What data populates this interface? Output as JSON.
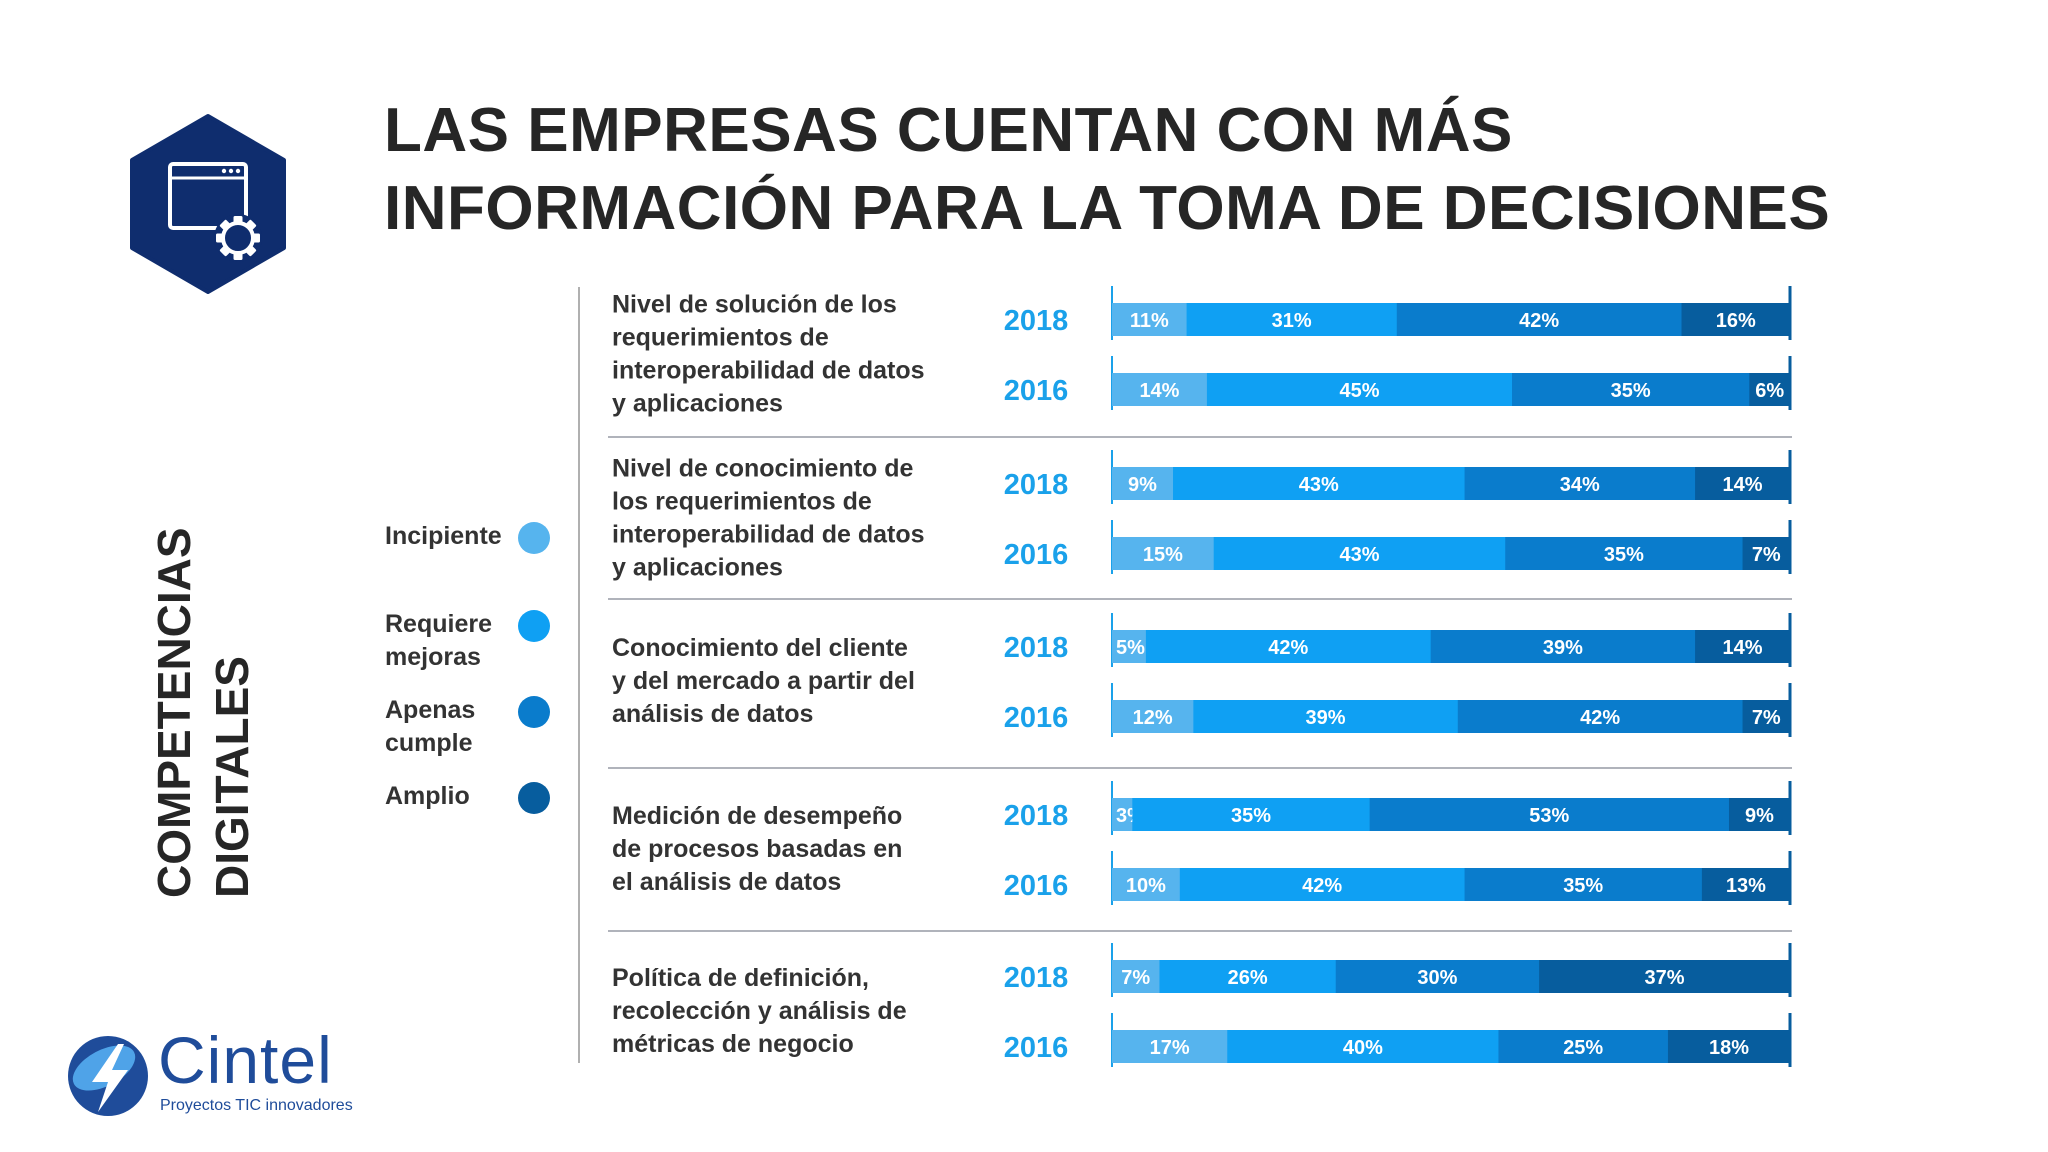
{
  "title": {
    "line1": "LAS EMPRESAS CUENTAN CON MÁS",
    "line2": "INFORMACIÓN PARA LA TOMA DE DECISIONES"
  },
  "side_label": {
    "line1": "COMPETENCIAS",
    "line2": "DIGITALES"
  },
  "logo": {
    "name": "Cintel",
    "tagline": "Proyectos TIC innovadores"
  },
  "colors": {
    "incipiente": "#56b4ee",
    "requiere_mejoras": "#0fa0f3",
    "apenas_cumple": "#0a7ccc",
    "amplio": "#075d9e",
    "hex": "#0f2d6e",
    "year": "#1aa1ea"
  },
  "chart_data": {
    "type": "bar",
    "orientation": "horizontal",
    "stacked": true,
    "legend": [
      {
        "name": "Incipiente",
        "color": "#56b4ee"
      },
      {
        "name": "Requiere mejoras",
        "color": "#0fa0f3"
      },
      {
        "name": "Apenas cumple",
        "color": "#0a7ccc"
      },
      {
        "name": "Amplio",
        "color": "#075d9e"
      }
    ],
    "legend_placement": "left",
    "xlim": [
      0,
      100
    ],
    "groups": [
      {
        "category": "Nivel de solución de los requerimientos de interoperabilidad de datos y aplicaciones",
        "category_lines": [
          "Nivel de solución de los",
          "requerimientos de",
          "interoperabilidad de datos",
          "y aplicaciones"
        ],
        "rows": [
          {
            "year": "2018",
            "values": [
              11,
              31,
              42,
              16
            ]
          },
          {
            "year": "2016",
            "values": [
              14,
              45,
              35,
              6
            ]
          }
        ]
      },
      {
        "category": "Nivel de conocimiento de los requerimientos de interoperabilidad de datos y aplicaciones",
        "category_lines": [
          "Nivel de conocimiento de",
          "los requerimientos de",
          "interoperabilidad de datos",
          "y aplicaciones"
        ],
        "rows": [
          {
            "year": "2018",
            "values": [
              9,
              43,
              34,
              14
            ]
          },
          {
            "year": "2016",
            "values": [
              15,
              43,
              35,
              7
            ]
          }
        ]
      },
      {
        "category": "Conocimiento del cliente y del mercado a partir del análisis de datos",
        "category_lines": [
          "Conocimiento del cliente",
          "y del mercado a partir del",
          "análisis de datos"
        ],
        "rows": [
          {
            "year": "2018",
            "values": [
              5,
              42,
              39,
              14
            ]
          },
          {
            "year": "2016",
            "values": [
              12,
              39,
              42,
              7
            ]
          }
        ]
      },
      {
        "category": "Medición de desempeño de procesos basadas en el análisis de datos",
        "category_lines": [
          "Medición de desempeño",
          "de procesos basadas en",
          "el análisis de datos"
        ],
        "rows": [
          {
            "year": "2018",
            "values": [
              3,
              35,
              53,
              9
            ]
          },
          {
            "year": "2016",
            "values": [
              10,
              42,
              35,
              13
            ]
          }
        ]
      },
      {
        "category": "Política de definición, recolección y análisis de métricas de negocio",
        "category_lines": [
          "Política de definición,",
          "recolección y análisis de",
          "métricas de negocio"
        ],
        "rows": [
          {
            "year": "2018",
            "values": [
              7,
              26,
              30,
              37
            ]
          },
          {
            "year": "2016",
            "values": [
              17,
              40,
              25,
              18
            ]
          }
        ]
      }
    ]
  }
}
